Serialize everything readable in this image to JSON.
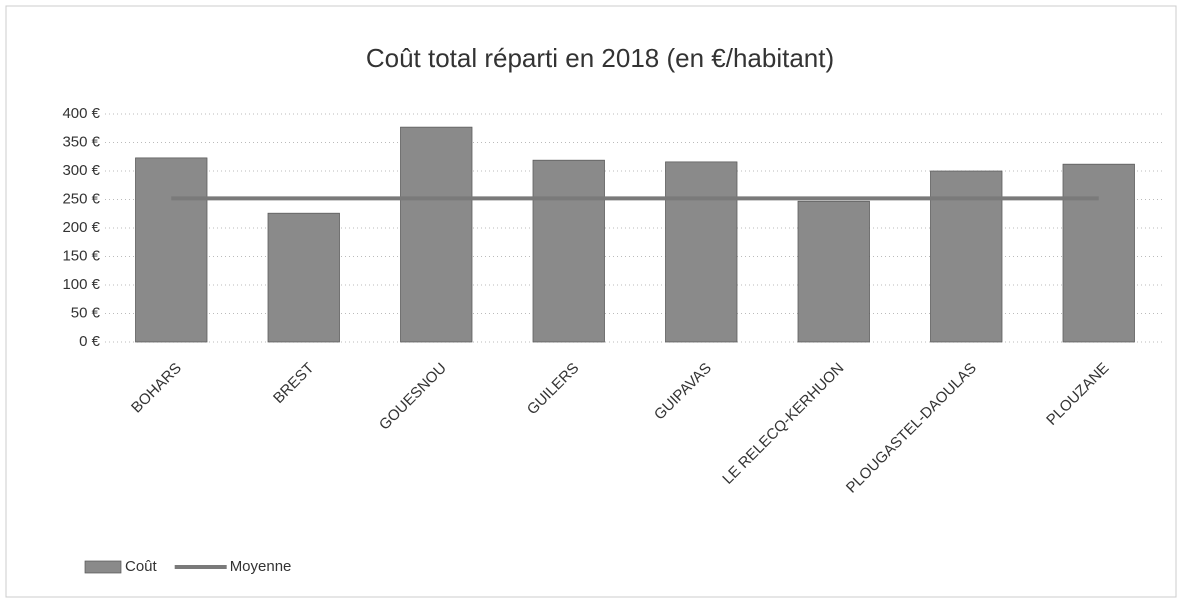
{
  "chart_data": {
    "type": "bar",
    "title": "Coût total réparti en 2018 (en €/habitant)",
    "categories": [
      "BOHARS",
      "BREST",
      "GOUESNOU",
      "GUILERS",
      "GUIPAVAS",
      "LE RELECQ-KERHUON",
      "PLOUGASTEL-DAOULAS",
      "PLOUZANE"
    ],
    "series": [
      {
        "name": "Coût",
        "type": "bar",
        "color": "#8a8a8a",
        "values": [
          323,
          226,
          377,
          319,
          316,
          247,
          300,
          312
        ]
      },
      {
        "name": "Moyenne",
        "type": "line",
        "color": "#7a7a7a",
        "values": [
          252,
          252,
          252,
          252,
          252,
          252,
          252,
          252
        ]
      }
    ],
    "ylim": [
      0,
      400
    ],
    "yticks": [
      {
        "value": 0,
        "label": "0 €"
      },
      {
        "value": 50,
        "label": "50 €"
      },
      {
        "value": 100,
        "label": "100 €"
      },
      {
        "value": 150,
        "label": "150 €"
      },
      {
        "value": 200,
        "label": "200 €"
      },
      {
        "value": 250,
        "label": "250 €"
      },
      {
        "value": 300,
        "label": "300 €"
      },
      {
        "value": 350,
        "label": "350 €"
      },
      {
        "value": 400,
        "label": "400 €"
      }
    ],
    "grid": true,
    "legend": "bottom-left"
  }
}
